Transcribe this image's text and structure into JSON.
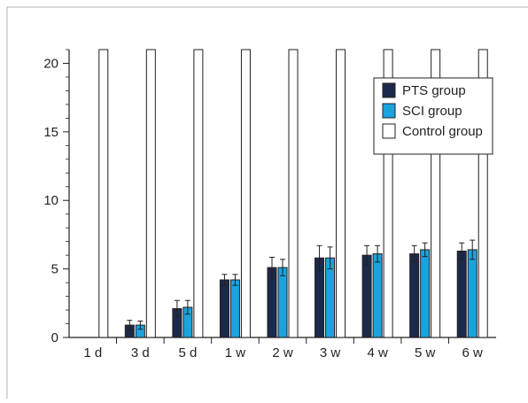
{
  "chart_data": {
    "type": "bar",
    "categories": [
      "1 d",
      "3 d",
      "5 d",
      "1 w",
      "2 w",
      "3 w",
      "4 w",
      "5 w",
      "6 w"
    ],
    "series": [
      {
        "name": "PTS group",
        "color": "#1b2a4a",
        "values": [
          0,
          0.9,
          2.1,
          4.2,
          5.1,
          5.8,
          6.0,
          6.1,
          6.3
        ],
        "errors": [
          0,
          0.35,
          0.6,
          0.4,
          0.75,
          0.9,
          0.7,
          0.6,
          0.6
        ]
      },
      {
        "name": "SCI group",
        "color": "#1aa3de",
        "values": [
          0,
          0.9,
          2.2,
          4.2,
          5.1,
          5.8,
          6.1,
          6.4,
          6.4
        ],
        "errors": [
          0,
          0.3,
          0.5,
          0.4,
          0.6,
          0.8,
          0.6,
          0.5,
          0.7
        ]
      },
      {
        "name": "Control group",
        "color": "#ffffff",
        "values": [
          21,
          21,
          21,
          21,
          21,
          21,
          21,
          21,
          21
        ],
        "errors": [
          0,
          0,
          0,
          0,
          0,
          0,
          0,
          0,
          0
        ]
      }
    ],
    "yticks": [
      0,
      5,
      10,
      15,
      20
    ],
    "ylim": [
      0,
      21
    ],
    "grid": false,
    "legend_position": "top-right"
  }
}
